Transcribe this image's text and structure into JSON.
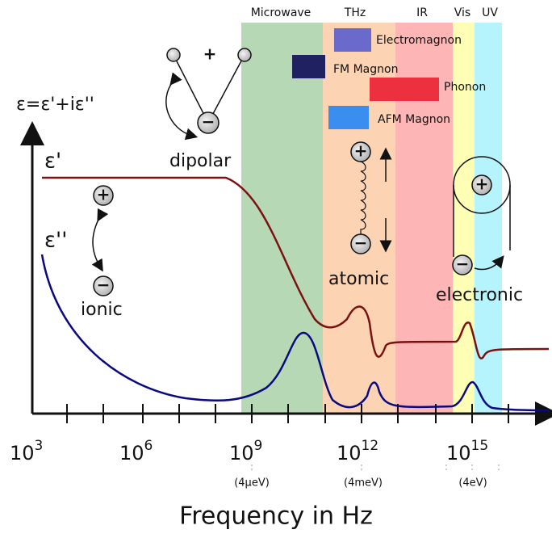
{
  "bands": [
    {
      "label": "Microwave"
    },
    {
      "label": "THz"
    },
    {
      "label": "IR"
    },
    {
      "label": "Vis"
    },
    {
      "label": "UV"
    }
  ],
  "excitations": [
    {
      "label": "Electromagnon"
    },
    {
      "label": "FM Magnon"
    },
    {
      "label": "Phonon"
    },
    {
      "label": "AFM Magnon"
    }
  ],
  "axis": {
    "y_label": "ε=ε'+iε''",
    "x_label": "Frequency in Hz",
    "ticks": [
      {
        "base": "10",
        "exp": "3"
      },
      {
        "base": "10",
        "exp": "6"
      },
      {
        "base": "10",
        "exp": "9"
      },
      {
        "base": "10",
        "exp": "12"
      },
      {
        "base": "10",
        "exp": "15"
      }
    ],
    "energies": [
      "(4μeV)",
      "(4meV)",
      "(4eV)"
    ]
  },
  "curves": [
    {
      "label": "ε'"
    },
    {
      "label": "ε''"
    }
  ],
  "mechanisms": [
    {
      "label": "dipolar"
    },
    {
      "label": "ionic"
    },
    {
      "label": "atomic"
    },
    {
      "label": "electronic"
    }
  ],
  "symbols": {
    "plus": "+",
    "minus": "−"
  }
}
